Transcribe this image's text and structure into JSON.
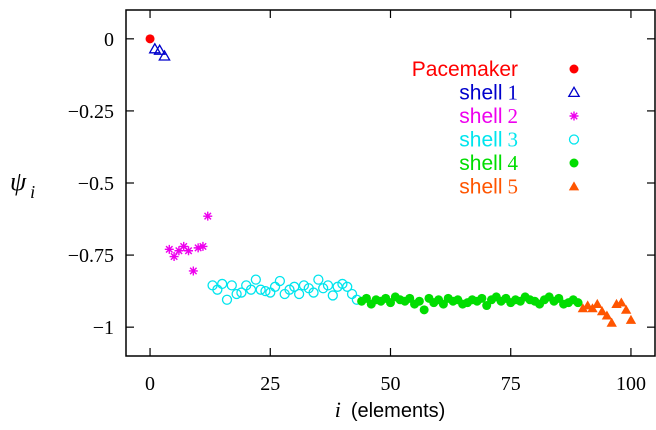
{
  "chart_data": {
    "type": "scatter",
    "xlabel_var": "i",
    "xlabel_rest": "(elements)",
    "ylabel_var": "ψ",
    "ylabel_sub": "i",
    "xlim": [
      -5,
      105
    ],
    "ylim": [
      -1.1,
      0.1
    ],
    "xticks": [
      0,
      25,
      50,
      75,
      100
    ],
    "xtick_labels": [
      "0",
      "25",
      "50",
      "75",
      "100"
    ],
    "yticks": [
      0,
      -0.25,
      -0.5,
      -0.75,
      -1
    ],
    "ytick_labels": [
      "0",
      "−0.25",
      "−0.5",
      "−0.75",
      "−1"
    ],
    "legend_position": "top-right",
    "series": [
      {
        "name": "Pacemaker",
        "name_word": "Pacemaker",
        "name_num": "",
        "marker": "filled-circle",
        "color": "#ff0000",
        "x": [
          0
        ],
        "y": [
          0
        ]
      },
      {
        "name": "shell 1",
        "name_word": "shell",
        "name_num": "1",
        "marker": "open-triangle",
        "color": "#0000cc",
        "x": [
          1,
          2,
          3
        ],
        "y": [
          -0.035,
          -0.04,
          -0.06
        ]
      },
      {
        "name": "shell 2",
        "name_word": "shell",
        "name_num": "2",
        "marker": "star",
        "color": "#ee00ee",
        "x": [
          4,
          5,
          6,
          7,
          8,
          9,
          10,
          11,
          12
        ],
        "y": [
          -0.73,
          -0.755,
          -0.735,
          -0.72,
          -0.735,
          -0.805,
          -0.725,
          -0.72,
          -0.615
        ]
      },
      {
        "name": "shell 3",
        "name_word": "shell",
        "name_num": "3",
        "marker": "open-circle",
        "color": "#00e5ee",
        "x": [
          13,
          14,
          15,
          16,
          17,
          18,
          19,
          20,
          21,
          22,
          23,
          24,
          25,
          26,
          27,
          28,
          29,
          30,
          31,
          32,
          33,
          34,
          35,
          36,
          37,
          38,
          39,
          40,
          41,
          42,
          43
        ],
        "y": [
          -0.855,
          -0.87,
          -0.85,
          -0.905,
          -0.855,
          -0.885,
          -0.88,
          -0.855,
          -0.87,
          -0.835,
          -0.87,
          -0.875,
          -0.88,
          -0.86,
          -0.84,
          -0.885,
          -0.87,
          -0.86,
          -0.885,
          -0.855,
          -0.865,
          -0.88,
          -0.835,
          -0.865,
          -0.855,
          -0.89,
          -0.86,
          -0.85,
          -0.86,
          -0.885,
          -0.905
        ]
      },
      {
        "name": "shell 4",
        "name_word": "shell",
        "name_num": "4",
        "marker": "filled-circle",
        "color": "#00dd00",
        "x": [
          44,
          45,
          46,
          47,
          48,
          49,
          50,
          51,
          52,
          53,
          54,
          55,
          56,
          57,
          58,
          59,
          60,
          61,
          62,
          63,
          64,
          65,
          66,
          67,
          68,
          69,
          70,
          71,
          72,
          73,
          74,
          75,
          76,
          77,
          78,
          79,
          80,
          81,
          82,
          83,
          84,
          85,
          86,
          87,
          88,
          89
        ],
        "y": [
          -0.91,
          -0.9,
          -0.92,
          -0.905,
          -0.91,
          -0.9,
          -0.915,
          -0.895,
          -0.905,
          -0.91,
          -0.9,
          -0.92,
          -0.91,
          -0.94,
          -0.9,
          -0.915,
          -0.905,
          -0.92,
          -0.9,
          -0.91,
          -0.905,
          -0.92,
          -0.915,
          -0.905,
          -0.91,
          -0.9,
          -0.925,
          -0.905,
          -0.895,
          -0.91,
          -0.9,
          -0.915,
          -0.905,
          -0.91,
          -0.895,
          -0.905,
          -0.91,
          -0.92,
          -0.905,
          -0.895,
          -0.91,
          -0.9,
          -0.92,
          -0.915,
          -0.905,
          -0.915
        ]
      },
      {
        "name": "shell 5",
        "name_word": "shell",
        "name_num": "5",
        "marker": "filled-triangle",
        "color": "#ff5500",
        "x": [
          90,
          91,
          92,
          93,
          94,
          95,
          96,
          97,
          98,
          99,
          100
        ],
        "y": [
          -0.935,
          -0.925,
          -0.935,
          -0.92,
          -0.945,
          -0.96,
          -0.985,
          -0.92,
          -0.915,
          -0.94,
          -0.975
        ]
      }
    ]
  }
}
